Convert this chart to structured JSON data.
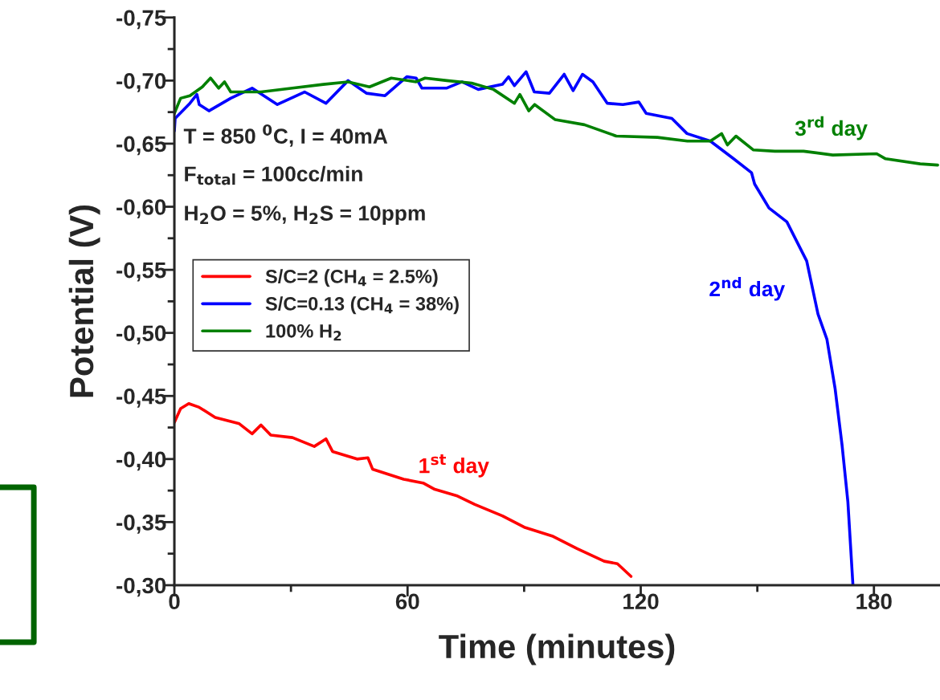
{
  "chart_data": {
    "type": "line",
    "xlabel": "Time (minutes)",
    "ylabel": "Potential (V)",
    "xlim": [
      0,
      197
    ],
    "ylim": [
      -0.3,
      -0.75
    ],
    "xticks": [
      0,
      {
        "value": 30,
        "label": null
      },
      60,
      {
        "value": 90,
        "label": null
      },
      120,
      {
        "value": 150,
        "label": null
      },
      180
    ],
    "yticks": [
      {
        "value": -0.75,
        "label": "-0,75"
      },
      {
        "value": -0.725,
        "label": null
      },
      {
        "value": -0.7,
        "label": "-0,70"
      },
      {
        "value": -0.675,
        "label": null
      },
      {
        "value": -0.65,
        "label": "-0,65"
      },
      {
        "value": -0.625,
        "label": null
      },
      {
        "value": -0.6,
        "label": "-0,60"
      },
      {
        "value": -0.575,
        "label": null
      },
      {
        "value": -0.55,
        "label": "-0,55"
      },
      {
        "value": -0.525,
        "label": null
      },
      {
        "value": -0.5,
        "label": "-0,50"
      },
      {
        "value": -0.475,
        "label": null
      },
      {
        "value": -0.45,
        "label": "-0,45"
      },
      {
        "value": -0.425,
        "label": null
      },
      {
        "value": -0.4,
        "label": "-0,40"
      },
      {
        "value": -0.375,
        "label": null
      },
      {
        "value": -0.35,
        "label": "-0,35"
      },
      {
        "value": -0.325,
        "label": null
      },
      {
        "value": -0.3,
        "label": "-0,30"
      }
    ],
    "grid": false,
    "legend": "left",
    "line_style": "solid",
    "marker": "none",
    "series": [
      {
        "name": "S/C=2 (CH$_{4}$ = 2.5%)",
        "color": "#ff0000",
        "x": [
          0,
          1.6,
          3.7,
          6.4,
          10.5,
          16.7,
          20,
          22.3,
          24.8,
          30.4,
          36,
          39,
          40.7,
          47,
          49.8,
          51,
          59,
          64,
          67,
          72.6,
          77.3,
          84.4,
          90,
          97.2,
          103.6,
          110.6,
          114,
          117.5
        ],
        "values": [
          -0.429,
          -0.44,
          -0.444,
          -0.441,
          -0.433,
          -0.428,
          -0.42,
          -0.427,
          -0.419,
          -0.417,
          -0.41,
          -0.416,
          -0.406,
          -0.4,
          -0.401,
          -0.392,
          -0.384,
          -0.381,
          -0.376,
          -0.371,
          -0.364,
          -0.355,
          -0.346,
          -0.339,
          -0.329,
          -0.319,
          -0.317,
          -0.307
        ]
      },
      {
        "name": "S/C=0.13 (CH$_{4}$ = 38%)",
        "color": "#0000ff",
        "x": [
          0,
          0.2,
          4,
          5.8,
          6.4,
          8.9,
          14.5,
          20,
          26.5,
          33.5,
          39,
          44.7,
          49.4,
          54.2,
          59.8,
          62.2,
          63.7,
          70,
          74,
          78.2,
          84.4,
          86,
          87.5,
          90.5,
          92.6,
          96.5,
          100.3,
          102.6,
          105,
          107.7,
          111.4,
          115.4,
          119.5,
          121.4,
          128,
          131.9,
          137.9,
          143.9,
          148.5,
          149.3,
          153,
          157.6,
          162.7,
          165.6,
          167.9,
          170,
          171.8,
          173.3,
          174.6
        ],
        "values": [
          -0.66,
          -0.67,
          -0.682,
          -0.689,
          -0.681,
          -0.676,
          -0.686,
          -0.694,
          -0.681,
          -0.691,
          -0.682,
          -0.7,
          -0.69,
          -0.688,
          -0.703,
          -0.702,
          -0.694,
          -0.694,
          -0.699,
          -0.693,
          -0.697,
          -0.703,
          -0.696,
          -0.707,
          -0.691,
          -0.69,
          -0.705,
          -0.692,
          -0.705,
          -0.699,
          -0.682,
          -0.681,
          -0.683,
          -0.674,
          -0.67,
          -0.658,
          -0.652,
          -0.638,
          -0.627,
          -0.618,
          -0.599,
          -0.588,
          -0.557,
          -0.515,
          -0.495,
          -0.456,
          -0.411,
          -0.366,
          -0.3
        ]
      },
      {
        "name": "100% H$_{2}$",
        "color": "#008000",
        "x": [
          0,
          1.6,
          4,
          7.2,
          9.3,
          11.4,
          12.9,
          14.5,
          22.3,
          30.4,
          38.3,
          44.7,
          50.2,
          55.8,
          62.2,
          64.5,
          70.1,
          76.5,
          82.1,
          87.5,
          88.9,
          91.2,
          92.7,
          98,
          105.5,
          113.7,
          124.3,
          132,
          137.9,
          140.8,
          142.3,
          144.5,
          149,
          154.5,
          161.9,
          169.4,
          180.7,
          183,
          191.9,
          196.4
        ],
        "values": [
          -0.674,
          -0.686,
          -0.688,
          -0.695,
          -0.702,
          -0.694,
          -0.699,
          -0.691,
          -0.691,
          -0.694,
          -0.697,
          -0.699,
          -0.695,
          -0.702,
          -0.699,
          -0.702,
          -0.7,
          -0.698,
          -0.693,
          -0.682,
          -0.689,
          -0.676,
          -0.681,
          -0.669,
          -0.665,
          -0.656,
          -0.655,
          -0.652,
          -0.652,
          -0.658,
          -0.649,
          -0.656,
          -0.645,
          -0.644,
          -0.644,
          -0.641,
          -0.642,
          -0.638,
          -0.634,
          -0.633
        ]
      }
    ],
    "annotations": [
      "1$^{st}$ day",
      "2$^{nd}$ day",
      "3$^{rd}$ day",
      "T = 850 $^{0}$C, I = 40mA",
      "F$_{total}$ = 100cc/min",
      "H$_{2}$O = 5%, H$_{2}$S = 10ppm"
    ]
  }
}
